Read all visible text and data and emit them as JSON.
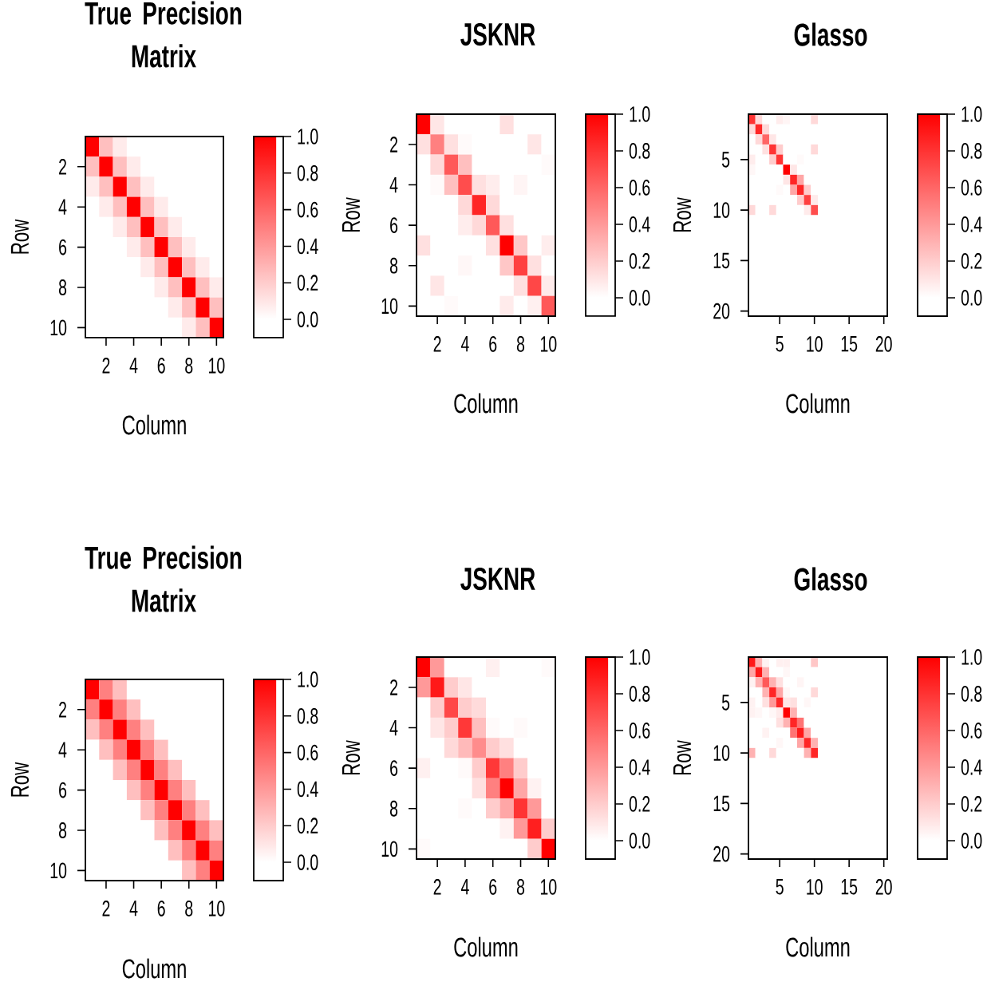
{
  "chart_data": [
    {
      "type": "heatmap",
      "title": "True Precision Matrix",
      "xlabel": "Column",
      "ylabel": "Row",
      "categories": [
        null,
        "2",
        null,
        "4",
        null,
        "6",
        null,
        "8",
        null,
        "10"
      ],
      "y_categories": [
        null,
        "2",
        null,
        "4",
        null,
        "6",
        null,
        "8",
        null,
        "10"
      ],
      "cells": [
        [
          1,
          0.25,
          0.08,
          0,
          0,
          0,
          0,
          0,
          0,
          0
        ],
        [
          0.25,
          1,
          0.25,
          0.08,
          0,
          0,
          0,
          0,
          0,
          0
        ],
        [
          0.08,
          0.25,
          1,
          0.25,
          0.08,
          0,
          0,
          0,
          0,
          0
        ],
        [
          0,
          0.08,
          0.25,
          1,
          0.25,
          0.08,
          0,
          0,
          0,
          0
        ],
        [
          0,
          0,
          0.08,
          0.25,
          1,
          0.25,
          0.08,
          0,
          0,
          0
        ],
        [
          0,
          0,
          0,
          0.08,
          0.25,
          1,
          0.25,
          0.08,
          0,
          0
        ],
        [
          0,
          0,
          0,
          0,
          0.08,
          0.25,
          1,
          0.25,
          0.08,
          0
        ],
        [
          0,
          0,
          0,
          0,
          0,
          0.08,
          0.25,
          1,
          0.25,
          0.08
        ],
        [
          0,
          0,
          0,
          0,
          0,
          0,
          0.08,
          0.25,
          1,
          0.25
        ],
        [
          0,
          0,
          0,
          0,
          0,
          0,
          0,
          0.08,
          0.25,
          1
        ]
      ],
      "clim": [
        -0.1,
        1.0
      ],
      "cticks": [
        {
          "value": 0,
          "label": "0.0"
        },
        {
          "value": 0.2,
          "label": "0.2"
        },
        {
          "value": 0.4,
          "label": "0.4"
        },
        {
          "value": 0.6,
          "label": "0.6"
        },
        {
          "value": 0.8,
          "label": "0.8"
        },
        {
          "value": 1,
          "label": "1.0"
        }
      ]
    },
    {
      "type": "heatmap",
      "title": "JSKNR",
      "xlabel": "Column",
      "ylabel": "Row",
      "categories": [
        null,
        "2",
        null,
        "4",
        null,
        "6",
        null,
        "8",
        null,
        "10"
      ],
      "y_categories": [
        null,
        "2",
        null,
        "4",
        null,
        "6",
        null,
        "8",
        null,
        "10"
      ],
      "cells": [
        [
          1,
          0.1,
          0,
          0,
          0,
          0,
          0.12,
          0,
          0,
          0
        ],
        [
          0.12,
          0.5,
          0.12,
          0.02,
          0,
          0,
          0,
          0,
          0.1,
          0
        ],
        [
          0,
          0.15,
          0.65,
          0.25,
          0,
          0,
          0,
          0,
          0,
          0.02
        ],
        [
          0,
          0.02,
          0.25,
          0.7,
          0.12,
          0.07,
          0,
          0.04,
          0,
          0
        ],
        [
          0,
          0,
          0,
          0.15,
          0.85,
          0.15,
          0,
          0,
          0,
          0
        ],
        [
          0,
          0,
          0,
          0.07,
          0.15,
          0.65,
          0.12,
          0,
          0,
          0
        ],
        [
          0.12,
          0,
          0,
          0,
          0,
          0.12,
          1,
          0.22,
          0,
          0.07
        ],
        [
          0,
          0,
          0,
          0.03,
          0,
          0,
          0.22,
          0.75,
          0.12,
          0
        ],
        [
          0,
          0.1,
          0,
          0,
          0,
          0,
          0,
          0.12,
          0.72,
          0.08
        ],
        [
          0,
          0,
          0.02,
          0,
          0,
          0,
          0.08,
          0,
          0.06,
          0.65
        ]
      ],
      "clim": [
        -0.1,
        1.0
      ],
      "cticks": [
        {
          "value": 0,
          "label": "0.0"
        },
        {
          "value": 0.2,
          "label": "0.2"
        },
        {
          "value": 0.4,
          "label": "0.4"
        },
        {
          "value": 0.6,
          "label": "0.6"
        },
        {
          "value": 0.8,
          "label": "0.8"
        },
        {
          "value": 1,
          "label": "1.0"
        }
      ]
    },
    {
      "type": "heatmap",
      "title": "Glasso",
      "xlabel": "Column",
      "ylabel": "Row",
      "categories": [
        null,
        null,
        null,
        null,
        "5",
        null,
        null,
        null,
        null,
        "10",
        null,
        null,
        null,
        null,
        "15",
        null,
        null,
        null,
        null,
        "20"
      ],
      "y_categories": [
        null,
        null,
        null,
        null,
        "5",
        null,
        null,
        null,
        null,
        "10",
        null,
        null,
        null,
        null,
        "15",
        null,
        null,
        null,
        null,
        "20"
      ],
      "cells": [
        [
          0.8,
          0.15,
          0,
          0,
          0.07,
          0.04,
          0,
          0,
          0,
          0.15,
          0,
          0,
          0,
          0,
          0,
          0,
          0,
          0,
          0,
          0
        ],
        [
          0.15,
          0.85,
          0.15,
          0,
          0,
          0,
          0,
          0,
          0,
          0,
          0,
          0,
          0,
          0,
          0,
          0,
          0,
          0,
          0,
          0
        ],
        [
          0,
          0.15,
          0.6,
          0.1,
          0,
          0,
          0,
          0,
          0,
          0,
          0,
          0,
          0,
          0,
          0,
          0,
          0,
          0,
          0,
          0
        ],
        [
          0,
          0,
          0.12,
          0.8,
          0.2,
          0,
          0,
          0,
          0,
          0.15,
          0,
          0,
          0,
          0,
          0,
          0,
          0,
          0,
          0,
          0
        ],
        [
          0.07,
          0,
          0,
          0.2,
          0.8,
          0,
          0,
          0.02,
          0,
          0,
          0,
          0,
          0,
          0,
          0,
          0,
          0,
          0,
          0,
          0
        ],
        [
          0.03,
          0,
          0,
          0,
          0,
          1,
          0.1,
          0,
          0,
          0,
          0,
          0,
          0,
          0,
          0,
          0,
          0,
          0,
          0,
          0
        ],
        [
          0,
          0,
          0,
          0,
          0,
          0.1,
          0.85,
          0.35,
          0,
          0,
          0,
          0,
          0,
          0,
          0,
          0,
          0,
          0,
          0,
          0
        ],
        [
          0,
          0,
          0,
          0,
          0.02,
          0,
          0.35,
          0.85,
          0.2,
          0,
          0,
          0,
          0,
          0,
          0,
          0,
          0,
          0,
          0,
          0
        ],
        [
          0,
          0,
          0,
          0,
          0,
          0,
          0,
          0.2,
          0.75,
          0.08,
          0,
          0,
          0,
          0,
          0,
          0,
          0,
          0,
          0,
          0
        ],
        [
          0.15,
          0,
          0,
          0.15,
          0,
          0,
          0,
          0,
          0.08,
          0.7,
          0,
          0,
          0,
          0,
          0,
          0,
          0,
          0,
          0,
          0
        ],
        [
          0,
          0,
          0,
          0,
          0,
          0,
          0,
          0,
          0,
          0,
          0,
          0,
          0,
          0,
          0,
          0,
          0,
          0,
          0,
          0
        ],
        [
          0,
          0,
          0,
          0,
          0,
          0,
          0,
          0,
          0,
          0,
          0,
          0,
          0,
          0,
          0,
          0,
          0,
          0,
          0,
          0
        ],
        [
          0,
          0,
          0,
          0,
          0,
          0,
          0,
          0,
          0,
          0,
          0,
          0,
          0,
          0,
          0,
          0,
          0,
          0,
          0,
          0
        ],
        [
          0,
          0,
          0,
          0,
          0,
          0,
          0,
          0,
          0,
          0,
          0,
          0,
          0,
          0,
          0,
          0,
          0,
          0,
          0,
          0
        ],
        [
          0,
          0,
          0,
          0,
          0,
          0,
          0,
          0,
          0,
          0,
          0,
          0,
          0,
          0,
          0,
          0,
          0,
          0,
          0,
          0
        ],
        [
          0,
          0,
          0,
          0,
          0,
          0,
          0,
          0,
          0,
          0,
          0,
          0,
          0,
          0,
          0,
          0,
          0,
          0,
          0,
          0
        ],
        [
          0,
          0,
          0,
          0,
          0,
          0,
          0,
          0,
          0,
          0,
          0,
          0,
          0,
          0,
          0,
          0,
          0,
          0,
          0,
          0
        ],
        [
          0,
          0,
          0,
          0,
          0,
          0,
          0,
          0,
          0,
          0,
          0,
          0,
          0,
          0,
          0,
          0,
          0,
          0,
          0,
          0
        ],
        [
          0,
          0,
          0,
          0,
          0,
          0,
          0,
          0,
          0,
          0,
          0,
          0,
          0,
          0,
          0,
          0,
          0,
          0,
          0,
          0
        ],
        [
          0,
          0,
          0,
          0,
          0,
          0,
          0,
          0,
          0,
          0,
          0,
          0,
          0,
          0,
          0,
          0,
          0,
          0,
          0,
          0
        ]
      ],
      "clim": [
        -0.1,
        1.0
      ],
      "cticks": [
        {
          "value": 0,
          "label": "0.0"
        },
        {
          "value": 0.2,
          "label": "0.2"
        },
        {
          "value": 0.4,
          "label": "0.4"
        },
        {
          "value": 0.6,
          "label": "0.6"
        },
        {
          "value": 0.8,
          "label": "0.8"
        },
        {
          "value": 1,
          "label": "1.0"
        }
      ]
    },
    {
      "type": "heatmap",
      "title": "True Precision Matrix",
      "xlabel": "Column",
      "ylabel": "Row",
      "categories": [
        null,
        "2",
        null,
        "4",
        null,
        "6",
        null,
        "8",
        null,
        "10"
      ],
      "y_categories": [
        null,
        "2",
        null,
        "4",
        null,
        "6",
        null,
        "8",
        null,
        "10"
      ],
      "cells": [
        [
          1,
          0.5,
          0.25,
          0,
          0,
          0,
          0,
          0,
          0,
          0
        ],
        [
          0.5,
          1,
          0.5,
          0.25,
          0,
          0,
          0,
          0,
          0,
          0
        ],
        [
          0.25,
          0.5,
          1,
          0.5,
          0.25,
          0,
          0,
          0,
          0,
          0
        ],
        [
          0,
          0.25,
          0.5,
          1,
          0.5,
          0.25,
          0,
          0,
          0,
          0
        ],
        [
          0,
          0,
          0.25,
          0.5,
          1,
          0.5,
          0.25,
          0,
          0,
          0
        ],
        [
          0,
          0,
          0,
          0.25,
          0.5,
          1,
          0.5,
          0.25,
          0,
          0
        ],
        [
          0,
          0,
          0,
          0,
          0.25,
          0.5,
          1,
          0.5,
          0.25,
          0
        ],
        [
          0,
          0,
          0,
          0,
          0,
          0.25,
          0.5,
          1,
          0.5,
          0.25
        ],
        [
          0,
          0,
          0,
          0,
          0,
          0,
          0.25,
          0.5,
          1,
          0.5
        ],
        [
          0,
          0,
          0,
          0,
          0,
          0,
          0,
          0.25,
          0.5,
          1
        ]
      ],
      "clim": [
        -0.1,
        1.0
      ],
      "cticks": [
        {
          "value": 0,
          "label": "0.0"
        },
        {
          "value": 0.2,
          "label": "0.2"
        },
        {
          "value": 0.4,
          "label": "0.4"
        },
        {
          "value": 0.6,
          "label": "0.6"
        },
        {
          "value": 0.8,
          "label": "0.8"
        },
        {
          "value": 1,
          "label": "1.0"
        }
      ]
    },
    {
      "type": "heatmap",
      "title": "JSKNR",
      "xlabel": "Column",
      "ylabel": "Row",
      "categories": [
        null,
        "2",
        null,
        "4",
        null,
        "6",
        null,
        "8",
        null,
        "10"
      ],
      "y_categories": [
        null,
        "2",
        null,
        "4",
        null,
        "6",
        null,
        "8",
        null,
        "10"
      ],
      "cells": [
        [
          1,
          0.4,
          0,
          0,
          0,
          0.06,
          0,
          0,
          0,
          0.02
        ],
        [
          0.4,
          0.9,
          0.2,
          0.1,
          0,
          0,
          0,
          0,
          0,
          0
        ],
        [
          0,
          0.2,
          0.72,
          0.2,
          0.14,
          0,
          0,
          0,
          0,
          0
        ],
        [
          0,
          0.1,
          0.2,
          0.78,
          0.25,
          0.02,
          0,
          0.02,
          0,
          0
        ],
        [
          0,
          0,
          0.15,
          0.27,
          0.45,
          0.2,
          0.12,
          0,
          0,
          0
        ],
        [
          0.06,
          0,
          0,
          0.02,
          0.2,
          0.78,
          0.5,
          0.2,
          0,
          0
        ],
        [
          0,
          0,
          0,
          0,
          0.12,
          0.5,
          1,
          0.35,
          0.05,
          0
        ],
        [
          0,
          0,
          0,
          0.02,
          0,
          0.2,
          0.35,
          0.8,
          0.4,
          0
        ],
        [
          0,
          0,
          0,
          0,
          0,
          0,
          0.05,
          0.4,
          0.88,
          0.2
        ],
        [
          0.02,
          0,
          0,
          0,
          0,
          0,
          0,
          0,
          0.2,
          1
        ]
      ],
      "clim": [
        -0.1,
        1.0
      ],
      "cticks": [
        {
          "value": 0,
          "label": "0.0"
        },
        {
          "value": 0.2,
          "label": "0.2"
        },
        {
          "value": 0.4,
          "label": "0.4"
        },
        {
          "value": 0.6,
          "label": "0.6"
        },
        {
          "value": 0.8,
          "label": "0.8"
        },
        {
          "value": 1,
          "label": "1.0"
        }
      ]
    },
    {
      "type": "heatmap",
      "title": "Glasso",
      "xlabel": "Column",
      "ylabel": "Row",
      "categories": [
        null,
        null,
        null,
        null,
        "5",
        null,
        null,
        null,
        null,
        "10",
        null,
        null,
        null,
        null,
        "15",
        null,
        null,
        null,
        null,
        "20"
      ],
      "y_categories": [
        null,
        null,
        null,
        null,
        "5",
        null,
        null,
        null,
        null,
        "10",
        null,
        null,
        null,
        null,
        "15",
        null,
        null,
        null,
        null,
        "20"
      ],
      "cells": [
        [
          0.9,
          0.3,
          0.05,
          0,
          0.06,
          0.06,
          0,
          0,
          0,
          0.22,
          0,
          0,
          0,
          0,
          0,
          0,
          0,
          0,
          0,
          0
        ],
        [
          0.35,
          0.9,
          0.3,
          0,
          0,
          0.03,
          0,
          0,
          0,
          0,
          0,
          0,
          0,
          0,
          0,
          0,
          0,
          0,
          0,
          0
        ],
        [
          0.05,
          0.3,
          0.65,
          0.3,
          0.12,
          0,
          0,
          0.04,
          0,
          0,
          0,
          0,
          0,
          0,
          0,
          0,
          0,
          0,
          0,
          0
        ],
        [
          0,
          0,
          0.3,
          0.85,
          0.35,
          0.03,
          0,
          0,
          0,
          0.15,
          0,
          0,
          0,
          0,
          0,
          0,
          0,
          0,
          0,
          0
        ],
        [
          0.05,
          0,
          0.12,
          0.4,
          0.85,
          0.1,
          0.12,
          0,
          0.03,
          0,
          0,
          0,
          0,
          0,
          0,
          0,
          0,
          0,
          0,
          0
        ],
        [
          0.05,
          0.03,
          0,
          0.03,
          0.08,
          1,
          0.3,
          0,
          0,
          0,
          0,
          0,
          0,
          0,
          0,
          0,
          0,
          0,
          0,
          0
        ],
        [
          0,
          0,
          0,
          0,
          0.12,
          0.3,
          0.85,
          0.55,
          0,
          0,
          0,
          0,
          0,
          0,
          0,
          0,
          0,
          0,
          0,
          0
        ],
        [
          0,
          0,
          0.05,
          0,
          0,
          0,
          0.55,
          0.9,
          0.35,
          0,
          0,
          0,
          0,
          0,
          0,
          0,
          0,
          0,
          0,
          0
        ],
        [
          0,
          0,
          0,
          0,
          0.03,
          0,
          0,
          0.35,
          0.85,
          0.3,
          0,
          0,
          0,
          0,
          0,
          0,
          0,
          0,
          0,
          0
        ],
        [
          0.3,
          0,
          0,
          0.15,
          0,
          0,
          0,
          0,
          0.3,
          0.85,
          0,
          0,
          0,
          0,
          0,
          0,
          0,
          0,
          0,
          0
        ],
        [
          0,
          0,
          0,
          0,
          0,
          0,
          0,
          0,
          0,
          0,
          0,
          0,
          0,
          0,
          0,
          0,
          0,
          0,
          0,
          0
        ],
        [
          0,
          0,
          0,
          0,
          0,
          0,
          0,
          0,
          0,
          0,
          0,
          0,
          0,
          0,
          0,
          0,
          0,
          0,
          0,
          0
        ],
        [
          0,
          0,
          0,
          0,
          0,
          0,
          0,
          0,
          0,
          0,
          0,
          0,
          0,
          0,
          0,
          0,
          0,
          0,
          0,
          0
        ],
        [
          0,
          0,
          0,
          0,
          0,
          0,
          0,
          0,
          0,
          0,
          0,
          0,
          0,
          0,
          0,
          0,
          0,
          0,
          0,
          0
        ],
        [
          0,
          0,
          0,
          0,
          0,
          0,
          0,
          0,
          0,
          0,
          0,
          0,
          0,
          0,
          0,
          0,
          0,
          0,
          0,
          0
        ],
        [
          0,
          0,
          0,
          0,
          0,
          0,
          0,
          0,
          0,
          0,
          0,
          0,
          0,
          0,
          0,
          0,
          0,
          0,
          0,
          0
        ],
        [
          0,
          0,
          0,
          0,
          0,
          0,
          0,
          0,
          0,
          0,
          0,
          0,
          0,
          0,
          0,
          0,
          0,
          0,
          0,
          0
        ],
        [
          0,
          0,
          0,
          0,
          0,
          0,
          0,
          0,
          0,
          0,
          0,
          0,
          0,
          0,
          0,
          0,
          0,
          0,
          0,
          0
        ],
        [
          0,
          0,
          0,
          0,
          0,
          0,
          0,
          0,
          0,
          0,
          0,
          0,
          0,
          0,
          0,
          0,
          0,
          0,
          0,
          0
        ],
        [
          0,
          0,
          0,
          0,
          0,
          0,
          0,
          0,
          0,
          0,
          0,
          0,
          0,
          0,
          0,
          0,
          0,
          0,
          0,
          0
        ]
      ],
      "clim": [
        -0.1,
        1.0
      ],
      "cticks": [
        {
          "value": 0,
          "label": "0.0"
        },
        {
          "value": 0.2,
          "label": "0.2"
        },
        {
          "value": 0.4,
          "label": "0.4"
        },
        {
          "value": 0.6,
          "label": "0.6"
        },
        {
          "value": 0.8,
          "label": "0.8"
        },
        {
          "value": 1,
          "label": "1.0"
        }
      ]
    }
  ]
}
